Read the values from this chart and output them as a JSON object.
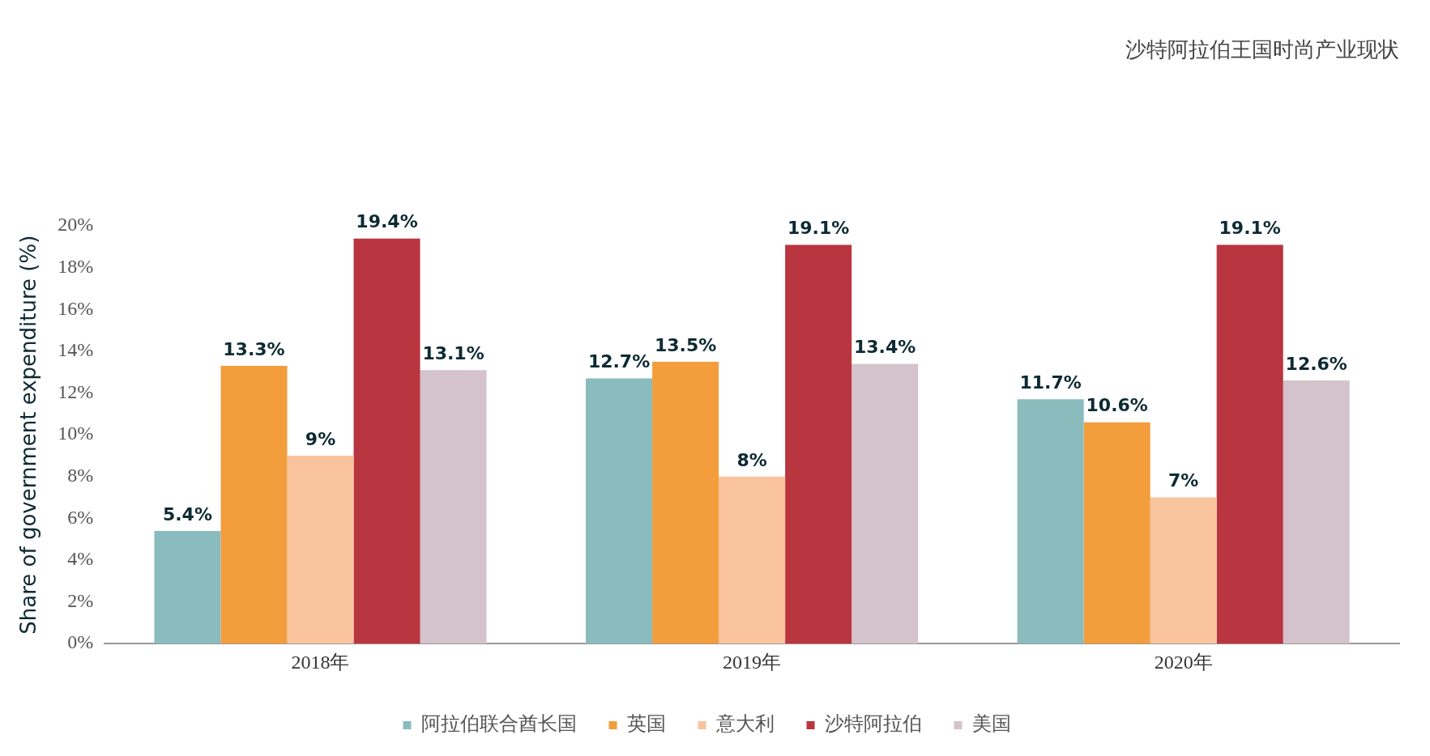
{
  "chart_data": {
    "type": "bar",
    "title": "沙特阿拉伯王国时尚产业现状",
    "ylabel": "Share of government expenditure (%)",
    "categories": [
      "2018年",
      "2019年",
      "2020年"
    ],
    "series": [
      {
        "name": "阿拉伯联合酋长国",
        "color": "#8abbbd",
        "values": [
          5.4,
          12.7,
          11.7
        ],
        "value_labels": [
          "5.4%",
          "12.7%",
          "11.7%"
        ]
      },
      {
        "name": "英国",
        "color": "#f39d3d",
        "values": [
          13.3,
          13.5,
          10.6
        ],
        "value_labels": [
          "13.3%",
          "13.5%",
          "10.6%"
        ]
      },
      {
        "name": "意大利",
        "color": "#f8c39d",
        "values": [
          9,
          8,
          7
        ],
        "value_labels": [
          "9%",
          "8%",
          "7%"
        ]
      },
      {
        "name": "沙特阿拉伯",
        "color": "#b93540",
        "values": [
          19.4,
          19.1,
          19.1
        ],
        "value_labels": [
          "19.4%",
          "19.1%",
          "19.1%"
        ]
      },
      {
        "name": "美国",
        "color": "#d5c3cb",
        "values": [
          13.1,
          13.4,
          12.6
        ],
        "value_labels": [
          "13.1%",
          "13.4%",
          "12.6%"
        ]
      }
    ],
    "ylim": [
      0,
      20
    ],
    "yticks": [
      {
        "value": 0,
        "label": "0%"
      },
      {
        "value": 2,
        "label": "2%"
      },
      {
        "value": 4,
        "label": "4%"
      },
      {
        "value": 6,
        "label": "6%"
      },
      {
        "value": 8,
        "label": "8%"
      },
      {
        "value": 10,
        "label": "10%"
      },
      {
        "value": 12,
        "label": "12%"
      },
      {
        "value": 14,
        "label": "14%"
      },
      {
        "value": 16,
        "label": "16%"
      },
      {
        "value": 18,
        "label": "18%"
      },
      {
        "value": 20,
        "label": "20%"
      }
    ],
    "grid": false,
    "legend": "bottom"
  }
}
